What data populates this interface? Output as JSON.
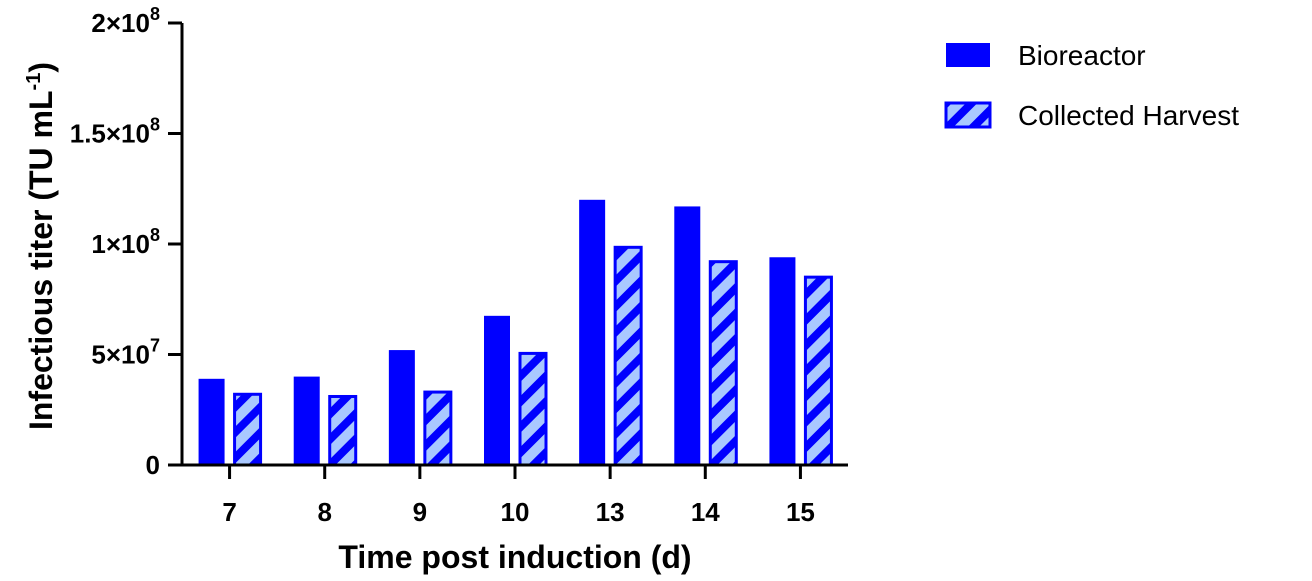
{
  "chart_data": {
    "type": "bar",
    "categories": [
      "7",
      "8",
      "9",
      "10",
      "13",
      "14",
      "15"
    ],
    "series": [
      {
        "name": "Bioreactor",
        "values": [
          39000000,
          40000000,
          52000000,
          67500000,
          120000000,
          117000000,
          94000000
        ],
        "color": "#0000ff",
        "pattern": "solid"
      },
      {
        "name": "Collected Harvest",
        "values": [
          32000000,
          31000000,
          33000000,
          50500000,
          98500000,
          92000000,
          85000000
        ],
        "color": "#0000ff",
        "pattern": "hatched"
      }
    ],
    "xlabel": "Time post induction (d)",
    "ylabel_main": "Infectious titer (TU mL",
    "ylabel_sup": "-1",
    "ylabel_close": ")",
    "ylim": [
      0,
      200000000
    ],
    "yticks": [
      {
        "value": 0,
        "mantissa": "0",
        "exp": ""
      },
      {
        "value": 50000000,
        "mantissa": "5×10",
        "exp": "7"
      },
      {
        "value": 100000000,
        "mantissa": "1×10",
        "exp": "8"
      },
      {
        "value": 150000000,
        "mantissa": "1.5×10",
        "exp": "8"
      },
      {
        "value": 200000000,
        "mantissa": "2×10",
        "exp": "8"
      }
    ],
    "legend_position": "top-right",
    "grid": false
  }
}
